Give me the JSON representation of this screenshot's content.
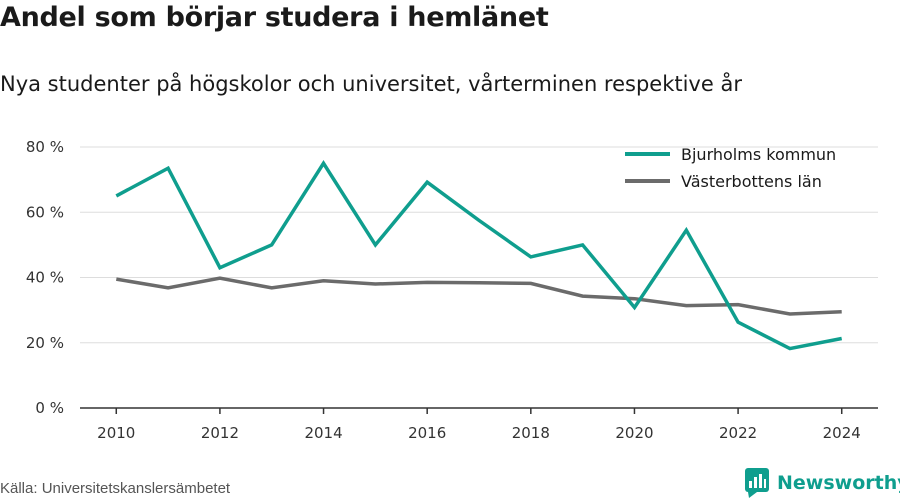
{
  "header": {
    "title": "Andel som börjar studera i hemlänet",
    "subtitle": "Nya studenter på högskolor och universitet, vårterminen respektive år"
  },
  "footer": {
    "source": "Källa: Universitetskanslersämbetet",
    "brand": "Newsworthy",
    "brand_icon": "newsworthy-logo-icon"
  },
  "colors": {
    "bjurholm": "#0f9e8e",
    "vasterbotten": "#6b6b6b",
    "grid": "#dddddd",
    "axis": "#333333",
    "brand": "#0f9e8e"
  },
  "chart_data": {
    "type": "line",
    "title": "Andel som börjar studera i hemlänet",
    "subtitle": "Nya studenter på högskolor och universitet, vårterminen respektive år",
    "x": [
      2010,
      2011,
      2012,
      2013,
      2014,
      2015,
      2016,
      2017,
      2018,
      2019,
      2020,
      2021,
      2022,
      2023,
      2024
    ],
    "x_ticks": [
      2010,
      2012,
      2014,
      2016,
      2018,
      2020,
      2022,
      2024
    ],
    "x_tick_labels": [
      "2010",
      "2012",
      "2014",
      "2016",
      "2018",
      "2020",
      "2022",
      "2024"
    ],
    "xlim": [
      2009.3,
      2024.7
    ],
    "ylim": [
      0,
      80
    ],
    "y_ticks": [
      0,
      20,
      40,
      60,
      80
    ],
    "y_tick_labels": [
      "0 %",
      "20 %",
      "40 %",
      "60 %",
      "80 %"
    ],
    "grid": true,
    "legend_position": "top-right",
    "series": [
      {
        "name": "Bjurholms kommun",
        "color": "#0f9e8e",
        "values": [
          65,
          73.5,
          43,
          50,
          75,
          50,
          69.2,
          57.5,
          46.3,
          50,
          30.8,
          54.5,
          26.3,
          18.2,
          21.3
        ]
      },
      {
        "name": "Västerbottens län",
        "color": "#6b6b6b",
        "values": [
          39.5,
          36.8,
          39.8,
          36.8,
          39,
          38,
          38.5,
          38.4,
          38.2,
          34.3,
          33.5,
          31.4,
          31.7,
          28.8,
          29.5
        ]
      }
    ]
  }
}
